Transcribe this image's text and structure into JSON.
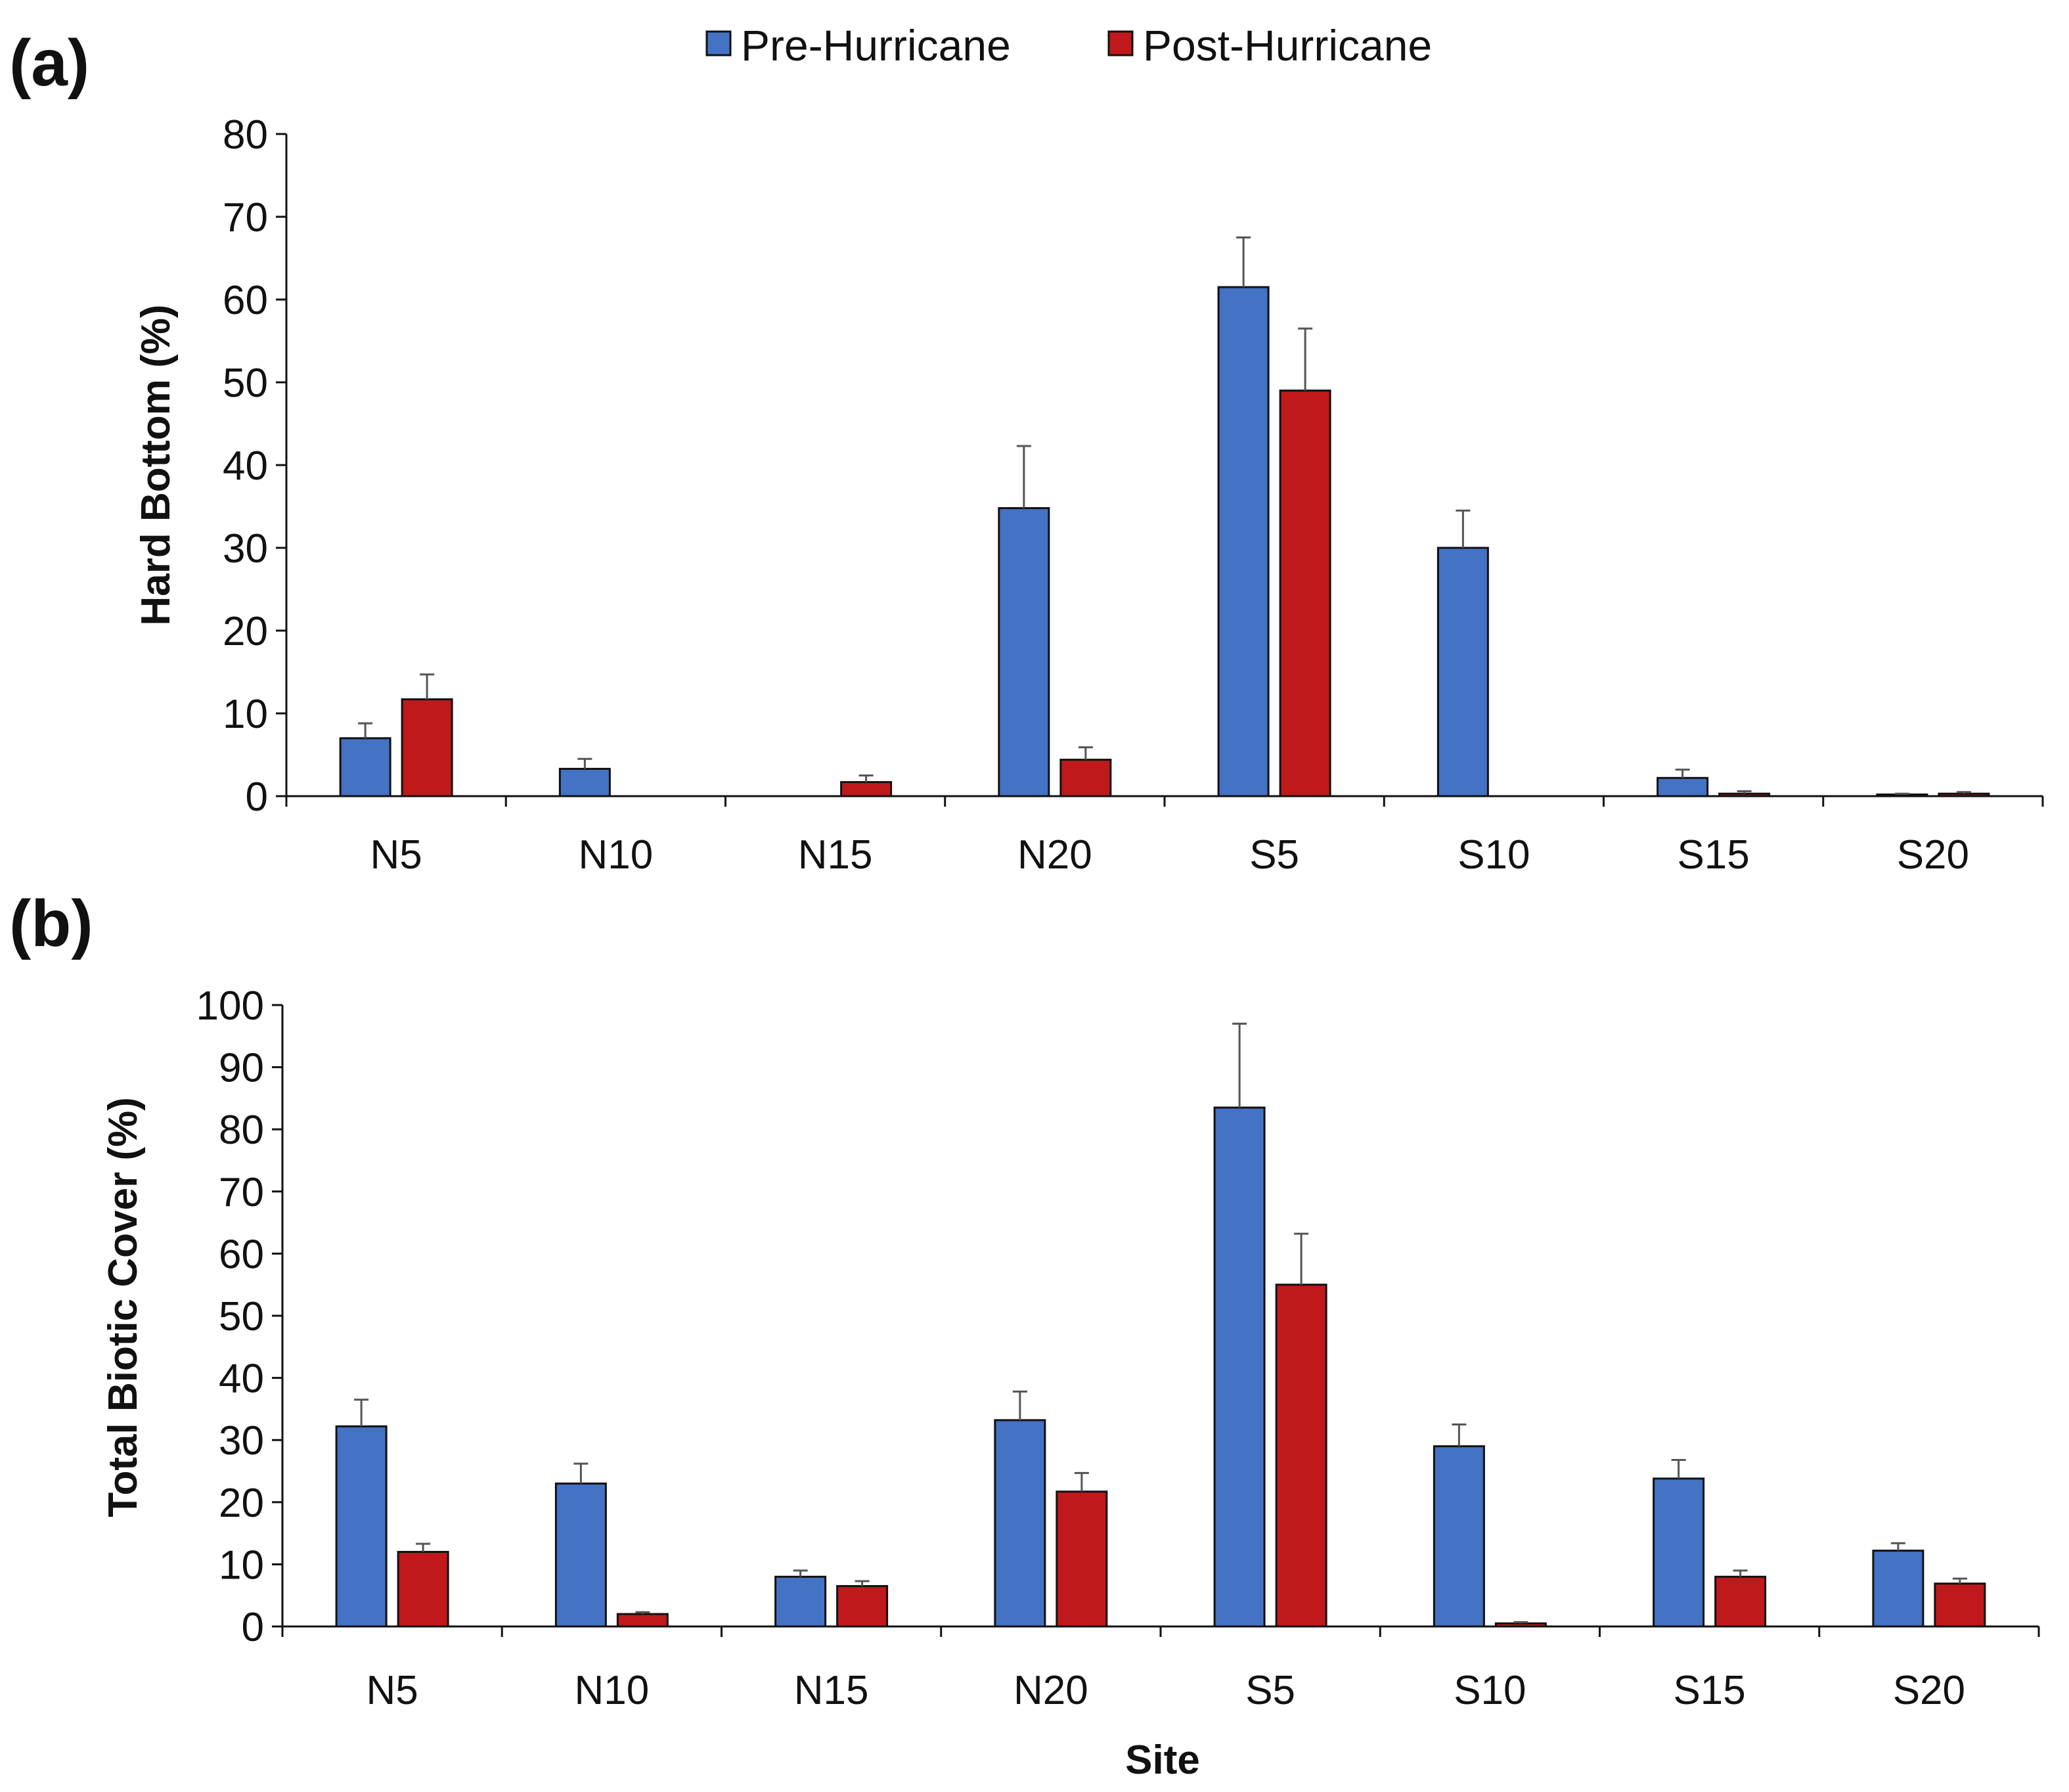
{
  "legend": {
    "series": [
      {
        "name": "Pre-Hurricane",
        "color": "#4472C4"
      },
      {
        "name": "Post-Hurricane",
        "color": "#C0191B"
      }
    ]
  },
  "chart_data": [
    {
      "type": "bar",
      "panel_label": "(a)",
      "title": "",
      "xlabel": "",
      "ylabel": "Hard Bottom (%)",
      "ylim": [
        0,
        80
      ],
      "yticks": [
        "0",
        "10",
        "20",
        "30",
        "40",
        "50",
        "60",
        "70",
        "80"
      ],
      "ytick_values": [
        0,
        10,
        20,
        30,
        40,
        50,
        60,
        70,
        80
      ],
      "categories": [
        "N5",
        "N10",
        "N15",
        "N20",
        "S5",
        "S10",
        "S15",
        "S20"
      ],
      "series": [
        {
          "name": "Pre-Hurricane",
          "color": "#4472C4",
          "values": [
            7.0,
            3.3,
            0,
            34.8,
            61.5,
            30.0,
            2.2,
            0.2
          ],
          "errors": [
            1.8,
            1.2,
            0,
            7.5,
            6.0,
            4.5,
            1.0,
            0.1
          ]
        },
        {
          "name": "Post-Hurricane",
          "color": "#C0191B",
          "values": [
            11.7,
            0,
            1.7,
            4.4,
            49.0,
            0,
            0.3,
            0.3
          ],
          "errors": [
            3.0,
            0,
            0.8,
            1.5,
            7.5,
            0,
            0.3,
            0.2
          ]
        }
      ],
      "grid": false
    },
    {
      "type": "bar",
      "panel_label": "(b)",
      "title": "",
      "xlabel": "Site",
      "ylabel": "Total Biotic Cover (%)",
      "ylim": [
        0,
        100
      ],
      "yticks": [
        "0",
        "10",
        "20",
        "30",
        "40",
        "50",
        "60",
        "70",
        "80",
        "90",
        "100"
      ],
      "ytick_values": [
        0,
        10,
        20,
        30,
        40,
        50,
        60,
        70,
        80,
        90,
        100
      ],
      "categories": [
        "N5",
        "N10",
        "N15",
        "N20",
        "S5",
        "S10",
        "S15",
        "S20"
      ],
      "series": [
        {
          "name": "Pre-Hurricane",
          "color": "#4472C4",
          "values": [
            32.2,
            23.0,
            8.0,
            33.2,
            83.5,
            29.0,
            23.8,
            12.2
          ],
          "errors": [
            4.3,
            3.2,
            1.0,
            4.6,
            13.5,
            3.5,
            3.0,
            1.2
          ]
        },
        {
          "name": "Post-Hurricane",
          "color": "#C0191B",
          "values": [
            12.0,
            2.0,
            6.5,
            21.7,
            55.0,
            0.5,
            8.0,
            6.9
          ],
          "errors": [
            1.3,
            0.3,
            0.8,
            3.0,
            8.2,
            0.2,
            1.0,
            0.8
          ]
        }
      ],
      "grid": false
    }
  ]
}
